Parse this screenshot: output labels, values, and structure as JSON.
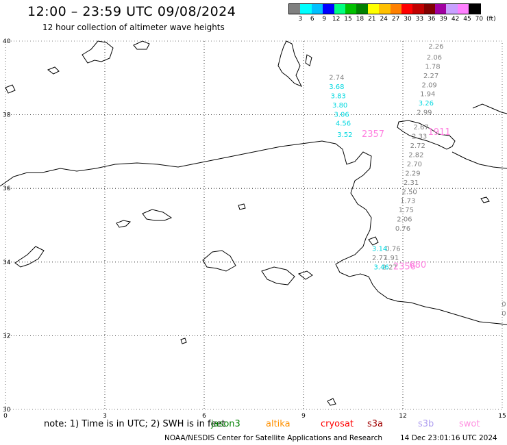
{
  "title": "12:00 – 23:59 UTC 09/08/2024",
  "subtitle": "12 hour collection of altimeter wave heights",
  "legend": {
    "colors": [
      "#808080",
      "#00ffff",
      "#00c0ff",
      "#0000ff",
      "#00ff80",
      "#00c000",
      "#008000",
      "#ffff00",
      "#ffc000",
      "#ff8000",
      "#ff0000",
      "#c00000",
      "#800000",
      "#a000a0",
      "#c8a0ff",
      "#ff80ff",
      "#000000"
    ],
    "labels": [
      "3",
      "6",
      "9",
      "12",
      "15",
      "18",
      "21",
      "24",
      "27",
      "30",
      "33",
      "36",
      "39",
      "42",
      "45",
      "70",
      "(ft)"
    ]
  },
  "axes": {
    "lon_ticks": [
      "0",
      "3",
      "6",
      "9",
      "12",
      "15"
    ],
    "lat_ticks": [
      "40",
      "38",
      "36",
      "34",
      "32",
      "30"
    ]
  },
  "chart_data": {
    "type": "scatter",
    "title": "12:00 – 23:59 UTC 09/08/2024",
    "subtitle": "12 hour collection of altimeter wave heights",
    "xlabel": "",
    "ylabel": "",
    "xlim": [
      0,
      15
    ],
    "ylim": [
      30,
      40
    ],
    "grid": true,
    "labels": [
      {
        "text": "2.26",
        "lon": 13.0,
        "lat": 39.8,
        "color": "#808080"
      },
      {
        "text": "2.06",
        "lon": 12.95,
        "lat": 39.5,
        "color": "#808080"
      },
      {
        "text": "1.78",
        "lon": 12.9,
        "lat": 39.25,
        "color": "#808080"
      },
      {
        "text": "2.27",
        "lon": 12.85,
        "lat": 39.0,
        "color": "#808080"
      },
      {
        "text": "2.09",
        "lon": 12.8,
        "lat": 38.75,
        "color": "#808080"
      },
      {
        "text": "1.94",
        "lon": 12.75,
        "lat": 38.5,
        "color": "#808080"
      },
      {
        "text": "3.26",
        "lon": 12.7,
        "lat": 38.25,
        "color": "#00d8e0"
      },
      {
        "text": "2.99",
        "lon": 12.65,
        "lat": 38.0,
        "color": "#808080"
      },
      {
        "text": "2.67",
        "lon": 12.55,
        "lat": 37.6,
        "color": "#808080"
      },
      {
        "text": "2.33",
        "lon": 12.5,
        "lat": 37.35,
        "color": "#808080"
      },
      {
        "text": "2.72",
        "lon": 12.45,
        "lat": 37.1,
        "color": "#808080"
      },
      {
        "text": "2.82",
        "lon": 12.4,
        "lat": 36.85,
        "color": "#808080"
      },
      {
        "text": "2.70",
        "lon": 12.35,
        "lat": 36.6,
        "color": "#808080"
      },
      {
        "text": "2.29",
        "lon": 12.3,
        "lat": 36.35,
        "color": "#808080"
      },
      {
        "text": "2.31",
        "lon": 12.25,
        "lat": 36.1,
        "color": "#808080"
      },
      {
        "text": "2.50",
        "lon": 12.2,
        "lat": 35.85,
        "color": "#808080"
      },
      {
        "text": "1.73",
        "lon": 12.15,
        "lat": 35.6,
        "color": "#808080"
      },
      {
        "text": "1.75",
        "lon": 12.1,
        "lat": 35.35,
        "color": "#808080"
      },
      {
        "text": "2.06",
        "lon": 12.05,
        "lat": 35.1,
        "color": "#808080"
      },
      {
        "text": "0.76",
        "lon": 12.0,
        "lat": 34.85,
        "color": "#808080"
      },
      {
        "text": "0.76",
        "lon": 11.7,
        "lat": 34.3,
        "color": "#808080"
      },
      {
        "text": "1.91",
        "lon": 11.65,
        "lat": 34.05,
        "color": "#808080"
      },
      {
        "text": "2.27",
        "lon": 11.6,
        "lat": 33.8,
        "color": "#808080"
      },
      {
        "text": "2.74",
        "lon": 10.0,
        "lat": 38.95,
        "color": "#808080"
      },
      {
        "text": "3.68",
        "lon": 10.0,
        "lat": 38.7,
        "color": "#00d8e0"
      },
      {
        "text": "3.83",
        "lon": 10.05,
        "lat": 38.45,
        "color": "#00d8e0"
      },
      {
        "text": "3.80",
        "lon": 10.1,
        "lat": 38.2,
        "color": "#00d8e0"
      },
      {
        "text": "3.06",
        "lon": 10.15,
        "lat": 37.95,
        "color": "#00d8e0"
      },
      {
        "text": "4.56",
        "lon": 10.2,
        "lat": 37.7,
        "color": "#00d8e0"
      },
      {
        "text": "3.52",
        "lon": 10.25,
        "lat": 37.4,
        "color": "#00d8e0"
      },
      {
        "text": "3.14",
        "lon": 11.3,
        "lat": 34.3,
        "color": "#00d8e0"
      },
      {
        "text": "2.77",
        "lon": 11.3,
        "lat": 34.05,
        "color": "#808080"
      },
      {
        "text": "3.46",
        "lon": 11.35,
        "lat": 33.8,
        "color": "#00d8e0"
      },
      {
        "text": "2357",
        "lon": 11.1,
        "lat": 37.4,
        "color": "#ff80e0"
      },
      {
        "text": "1911",
        "lon": 13.1,
        "lat": 37.45,
        "color": "#ff80e0"
      },
      {
        "text": "2356",
        "lon": 12.05,
        "lat": 33.8,
        "color": "#ff80e0"
      },
      {
        "text": "680",
        "lon": 12.45,
        "lat": 33.85,
        "color": "#ff80e0"
      },
      {
        "text": "0",
        "lon": 15.05,
        "lat": 32.8,
        "color": "#808080"
      },
      {
        "text": "0",
        "lon": 15.05,
        "lat": 32.55,
        "color": "#808080"
      }
    ]
  },
  "footer": {
    "note": "note: 1) Time is in UTC; 2) SWH is in feet",
    "satellites": [
      {
        "name": "jason3",
        "color": "#008000"
      },
      {
        "name": "altika",
        "color": "#ff9000"
      },
      {
        "name": "cryosat",
        "color": "#ff0000"
      },
      {
        "name": "s3a",
        "color": "#a00000"
      },
      {
        "name": "s3b",
        "color": "#b0a0f0"
      },
      {
        "name": "swot",
        "color": "#ff90e0"
      }
    ],
    "credit": "NOAA/NESDIS Center for Satellite Applications and Research",
    "timestamp": "14 Dec 23:01:16 UTC 2024"
  }
}
